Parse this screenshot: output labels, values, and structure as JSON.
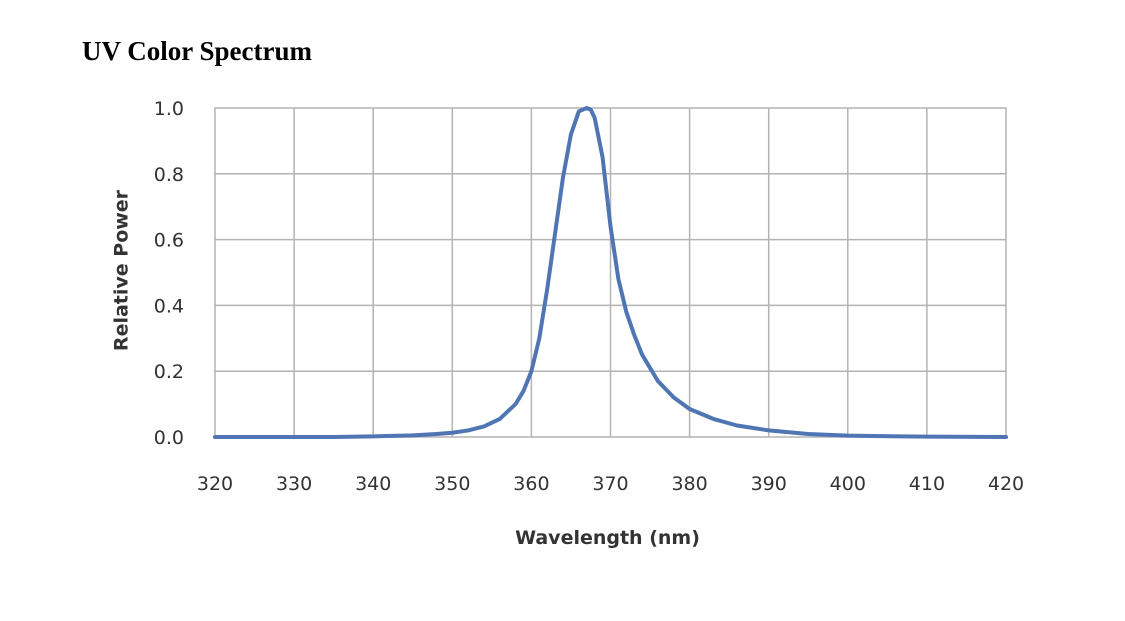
{
  "page": {
    "heading": "UV Color Spectrum"
  },
  "chart_data": {
    "type": "line",
    "title": "",
    "xlabel": "Wavelength (nm)",
    "ylabel": "Relative Power",
    "xlim": [
      320,
      420
    ],
    "ylim": [
      0,
      1.0
    ],
    "x_ticks": [
      320,
      330,
      340,
      350,
      360,
      370,
      380,
      390,
      400,
      410,
      420
    ],
    "x_tick_labels": [
      "320",
      "330",
      "340",
      "350",
      "360",
      "370",
      "380",
      "390",
      "400",
      "410",
      "420"
    ],
    "y_ticks": [
      0,
      0.2,
      0.4,
      0.6,
      0.8,
      1.0
    ],
    "y_tick_labels": [
      "0.0",
      "0.2",
      "0.4",
      "0.6",
      "0.8",
      "1.0"
    ],
    "grid": true,
    "legend": "none",
    "colors": {
      "line": "#4f75b3",
      "grid": "#b3b3b3",
      "frame": "#b3b3b3"
    },
    "series": [
      {
        "x": [
          320,
          335,
          340,
          345,
          348,
          350,
          352,
          354,
          356,
          358,
          359,
          360,
          361,
          362,
          363,
          364,
          365,
          366,
          367,
          367.5,
          368,
          369,
          370,
          371,
          372,
          373,
          374,
          375,
          376,
          378,
          380,
          383,
          386,
          390,
          395,
          400,
          410,
          420
        ],
        "y": [
          0.0,
          0.0,
          0.002,
          0.005,
          0.009,
          0.013,
          0.02,
          0.032,
          0.055,
          0.1,
          0.14,
          0.2,
          0.3,
          0.45,
          0.62,
          0.79,
          0.92,
          0.99,
          1.0,
          0.995,
          0.97,
          0.85,
          0.64,
          0.48,
          0.38,
          0.31,
          0.25,
          0.21,
          0.17,
          0.12,
          0.085,
          0.055,
          0.035,
          0.02,
          0.009,
          0.004,
          0.001,
          0.0
        ]
      }
    ]
  }
}
